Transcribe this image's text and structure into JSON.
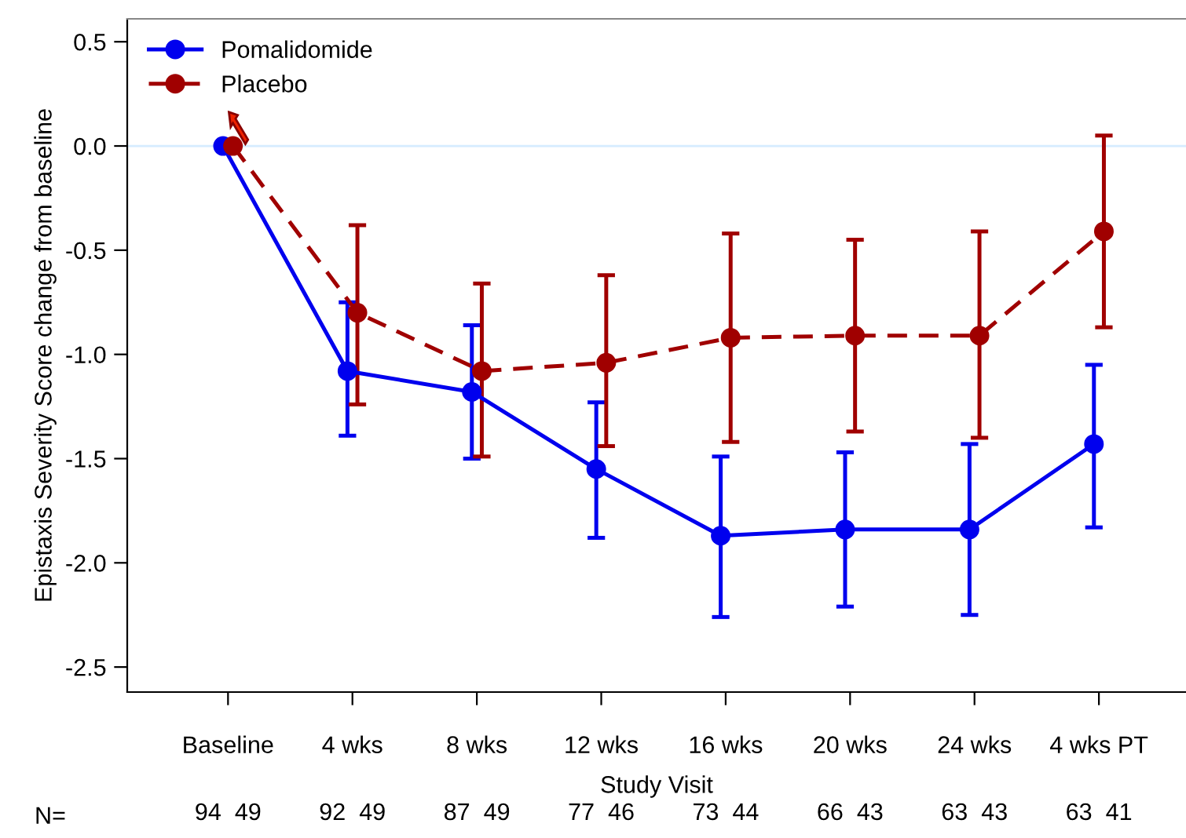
{
  "chart_data": {
    "type": "line",
    "xlabel": "Study Visit",
    "ylabel": "Epistaxis Severity Score change from baseline",
    "categories": [
      "Baseline",
      "4 wks",
      "8 wks",
      "12 wks",
      "16 wks",
      "20 wks",
      "24 wks",
      "4 wks PT"
    ],
    "series": [
      {
        "name": "Pomalidomide",
        "color": "#0000ee",
        "line_style": "solid",
        "values": [
          0,
          -1.08,
          -1.18,
          -1.55,
          -1.87,
          -1.84,
          -1.84,
          -1.43
        ],
        "errors": [
          null,
          [
            -1.39,
            -0.75
          ],
          [
            -1.5,
            -0.86
          ],
          [
            -1.88,
            -1.23
          ],
          [
            -2.26,
            -1.49
          ],
          [
            -2.21,
            -1.47
          ],
          [
            -2.25,
            -1.43
          ],
          [
            -1.83,
            -1.05
          ]
        ]
      },
      {
        "name": "Placebo",
        "color": "#a00000",
        "line_style": "dashed",
        "values": [
          0,
          -0.8,
          -1.08,
          -1.04,
          -0.92,
          -0.91,
          -0.91,
          -0.41
        ],
        "errors": [
          null,
          [
            -1.24,
            -0.38
          ],
          [
            -1.49,
            -0.66
          ],
          [
            -1.44,
            -0.62
          ],
          [
            -1.42,
            -0.42
          ],
          [
            -1.37,
            -0.45
          ],
          [
            -1.4,
            -0.41
          ],
          [
            -0.87,
            0.05
          ]
        ]
      }
    ],
    "marker": "circle",
    "legend": "top left",
    "grid": false,
    "ylim": [
      -2.62,
      0.61
    ],
    "yticks": [
      {
        "value": 0.5,
        "label": "0.5"
      },
      {
        "value": 0.0,
        "label": "0.0"
      },
      {
        "value": -0.5,
        "label": "-0.5"
      },
      {
        "value": -1.0,
        "label": "-1.0"
      },
      {
        "value": -1.5,
        "label": "-1.5"
      },
      {
        "value": -2.0,
        "label": "-2.0"
      },
      {
        "value": -2.5,
        "label": "-2.5"
      }
    ],
    "ref_lines": [
      {
        "axis": "y",
        "value": 0,
        "color": "#d6ecff"
      }
    ],
    "annotations": [
      "N=",
      "94  49",
      "92  49",
      "87  49",
      "77  46",
      "73  44",
      "66  43",
      "63  43",
      "63  41"
    ]
  }
}
